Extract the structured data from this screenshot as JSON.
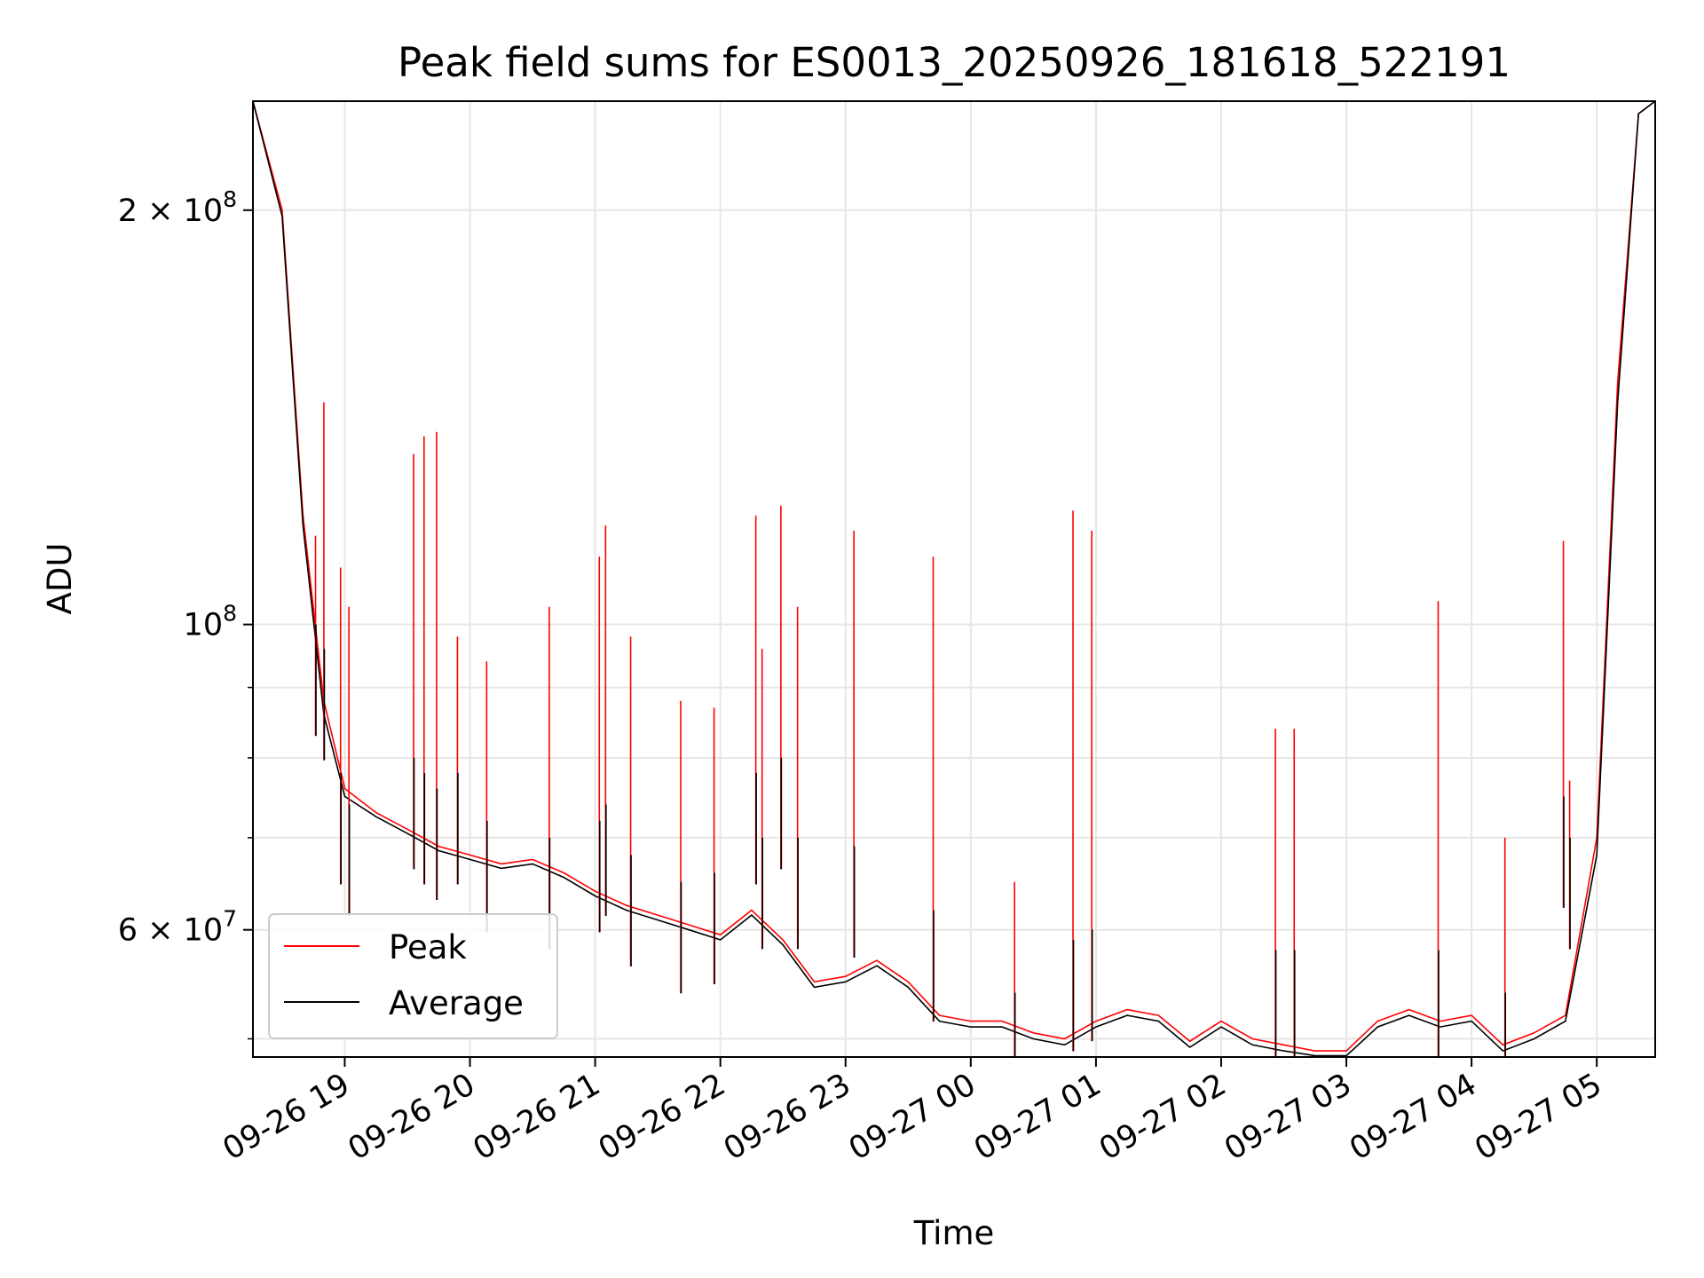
{
  "chart_data": {
    "type": "line",
    "title": "Peak field sums for ES0013_20250926_181618_522191",
    "xlabel": "Time",
    "ylabel": "ADU",
    "yscale": "log",
    "xlim": [
      "2025-09-26T18:16",
      "2025-09-27T05:28"
    ],
    "ylim": [
      48500000,
      240000000
    ],
    "grid": true,
    "legend_position": "lower-left",
    "x_ticks": [
      {
        "t": "2025-09-26T19:00",
        "label": "09-26 19"
      },
      {
        "t": "2025-09-26T20:00",
        "label": "09-26 20"
      },
      {
        "t": "2025-09-26T21:00",
        "label": "09-26 21"
      },
      {
        "t": "2025-09-26T22:00",
        "label": "09-26 22"
      },
      {
        "t": "2025-09-26T23:00",
        "label": "09-26 23"
      },
      {
        "t": "2025-09-27T00:00",
        "label": "09-27 00"
      },
      {
        "t": "2025-09-27T01:00",
        "label": "09-27 01"
      },
      {
        "t": "2025-09-27T02:00",
        "label": "09-27 02"
      },
      {
        "t": "2025-09-27T03:00",
        "label": "09-27 03"
      },
      {
        "t": "2025-09-27T04:00",
        "label": "09-27 04"
      },
      {
        "t": "2025-09-27T05:00",
        "label": "09-27 05"
      }
    ],
    "y_ticks": [
      {
        "v": 200000000,
        "label": "2 × 10",
        "exp": "8"
      },
      {
        "v": 100000000,
        "label": "10",
        "exp": "8"
      },
      {
        "v": 60000000,
        "label": "6 × 10",
        "exp": "7"
      }
    ],
    "y_minor_ticks": [
      50000000,
      70000000,
      80000000,
      90000000
    ],
    "series": [
      {
        "name": "Peak",
        "color": "#ff0000",
        "x": [
          "2025-09-26T18:16",
          "2025-09-26T18:30",
          "2025-09-26T18:40",
          "2025-09-26T18:50",
          "2025-09-26T19:00",
          "2025-09-26T19:15",
          "2025-09-26T19:30",
          "2025-09-26T19:45",
          "2025-09-26T20:00",
          "2025-09-26T20:15",
          "2025-09-26T20:30",
          "2025-09-26T20:45",
          "2025-09-26T21:00",
          "2025-09-26T21:15",
          "2025-09-26T21:30",
          "2025-09-26T21:45",
          "2025-09-26T22:00",
          "2025-09-26T22:15",
          "2025-09-26T22:30",
          "2025-09-26T22:45",
          "2025-09-26T23:00",
          "2025-09-26T23:15",
          "2025-09-26T23:30",
          "2025-09-26T23:45",
          "2025-09-27T00:00",
          "2025-09-27T00:15",
          "2025-09-27T00:30",
          "2025-09-27T00:45",
          "2025-09-27T01:00",
          "2025-09-27T01:15",
          "2025-09-27T01:30",
          "2025-09-27T01:45",
          "2025-09-27T02:00",
          "2025-09-27T02:15",
          "2025-09-27T02:30",
          "2025-09-27T02:45",
          "2025-09-27T03:00",
          "2025-09-27T03:15",
          "2025-09-27T03:30",
          "2025-09-27T03:45",
          "2025-09-27T04:00",
          "2025-09-27T04:15",
          "2025-09-27T04:30",
          "2025-09-27T04:45",
          "2025-09-27T05:00",
          "2025-09-27T05:10",
          "2025-09-27T05:20",
          "2025-09-27T05:28"
        ],
        "y": [
          240000000,
          200000000,
          120000000,
          88000000,
          76000000,
          73000000,
          71000000,
          69000000,
          68000000,
          67000000,
          67500000,
          66000000,
          64000000,
          62500000,
          61500000,
          60500000,
          59500000,
          62000000,
          59000000,
          55000000,
          55500000,
          57000000,
          55000000,
          52000000,
          51500000,
          51500000,
          50500000,
          50000000,
          51500000,
          52500000,
          52000000,
          49800000,
          51500000,
          50000000,
          49500000,
          49000000,
          49000000,
          51500000,
          52500000,
          51500000,
          52000000,
          49500000,
          50500000,
          52000000,
          70000000,
          150000000,
          235000000,
          240000000
        ]
      },
      {
        "name": "Average",
        "color": "#000000",
        "x": [
          "2025-09-26T18:16",
          "2025-09-26T18:30",
          "2025-09-26T18:40",
          "2025-09-26T18:50",
          "2025-09-26T19:00",
          "2025-09-26T19:15",
          "2025-09-26T19:30",
          "2025-09-26T19:45",
          "2025-09-26T20:00",
          "2025-09-26T20:15",
          "2025-09-26T20:30",
          "2025-09-26T20:45",
          "2025-09-26T21:00",
          "2025-09-26T21:15",
          "2025-09-26T21:30",
          "2025-09-26T21:45",
          "2025-09-26T22:00",
          "2025-09-26T22:15",
          "2025-09-26T22:30",
          "2025-09-26T22:45",
          "2025-09-26T23:00",
          "2025-09-26T23:15",
          "2025-09-26T23:30",
          "2025-09-26T23:45",
          "2025-09-27T00:00",
          "2025-09-27T00:15",
          "2025-09-27T00:30",
          "2025-09-27T00:45",
          "2025-09-27T01:00",
          "2025-09-27T01:15",
          "2025-09-27T01:30",
          "2025-09-27T01:45",
          "2025-09-27T02:00",
          "2025-09-27T02:15",
          "2025-09-27T02:30",
          "2025-09-27T02:45",
          "2025-09-27T03:00",
          "2025-09-27T03:15",
          "2025-09-27T03:30",
          "2025-09-27T03:45",
          "2025-09-27T04:00",
          "2025-09-27T04:15",
          "2025-09-27T04:30",
          "2025-09-27T04:45",
          "2025-09-27T05:00",
          "2025-09-27T05:10",
          "2025-09-27T05:20",
          "2025-09-27T05:28"
        ],
        "y": [
          240000000,
          198000000,
          118000000,
          86000000,
          75000000,
          72500000,
          70500000,
          68500000,
          67500000,
          66500000,
          67000000,
          65500000,
          63500000,
          62000000,
          61000000,
          60000000,
          59000000,
          61500000,
          58500000,
          54500000,
          55000000,
          56500000,
          54500000,
          51500000,
          51000000,
          51000000,
          50000000,
          49500000,
          51000000,
          52000000,
          51500000,
          49300000,
          51000000,
          49500000,
          49000000,
          48600000,
          48600000,
          51000000,
          52000000,
          51000000,
          51500000,
          49000000,
          50000000,
          51500000,
          68000000,
          145000000,
          235000000,
          240000000
        ]
      }
    ],
    "spikes": [
      {
        "t": "2025-09-26T18:46",
        "peak": 116000000,
        "avg": 100000000
      },
      {
        "t": "2025-09-26T18:50",
        "peak": 145000000,
        "avg": 96000000
      },
      {
        "t": "2025-09-26T18:58",
        "peak": 110000000,
        "avg": 78000000
      },
      {
        "t": "2025-09-26T19:02",
        "peak": 103000000,
        "avg": 74000000
      },
      {
        "t": "2025-09-26T19:33",
        "peak": 133000000,
        "avg": 80000000
      },
      {
        "t": "2025-09-26T19:38",
        "peak": 137000000,
        "avg": 78000000
      },
      {
        "t": "2025-09-26T19:44",
        "peak": 138000000,
        "avg": 76000000
      },
      {
        "t": "2025-09-26T19:54",
        "peak": 98000000,
        "avg": 78000000
      },
      {
        "t": "2025-09-26T20:08",
        "peak": 94000000,
        "avg": 72000000
      },
      {
        "t": "2025-09-26T20:38",
        "peak": 103000000,
        "avg": 70000000
      },
      {
        "t": "2025-09-26T21:02",
        "peak": 112000000,
        "avg": 72000000
      },
      {
        "t": "2025-09-26T21:05",
        "peak": 118000000,
        "avg": 74000000
      },
      {
        "t": "2025-09-26T21:17",
        "peak": 98000000,
        "avg": 68000000
      },
      {
        "t": "2025-09-26T21:41",
        "peak": 88000000,
        "avg": 65000000
      },
      {
        "t": "2025-09-26T21:57",
        "peak": 87000000,
        "avg": 66000000
      },
      {
        "t": "2025-09-26T22:17",
        "peak": 120000000,
        "avg": 78000000
      },
      {
        "t": "2025-09-26T22:20",
        "peak": 96000000,
        "avg": 70000000
      },
      {
        "t": "2025-09-26T22:29",
        "peak": 122000000,
        "avg": 80000000
      },
      {
        "t": "2025-09-26T22:37",
        "peak": 103000000,
        "avg": 70000000
      },
      {
        "t": "2025-09-26T23:04",
        "peak": 117000000,
        "avg": 69000000
      },
      {
        "t": "2025-09-26T23:42",
        "peak": 112000000,
        "avg": 62000000
      },
      {
        "t": "2025-09-27T00:21",
        "peak": 65000000,
        "avg": 54000000
      },
      {
        "t": "2025-09-27T00:49",
        "peak": 121000000,
        "avg": 59000000
      },
      {
        "t": "2025-09-27T00:58",
        "peak": 117000000,
        "avg": 60000000
      },
      {
        "t": "2025-09-27T02:26",
        "peak": 84000000,
        "avg": 58000000
      },
      {
        "t": "2025-09-27T02:35",
        "peak": 84000000,
        "avg": 58000000
      },
      {
        "t": "2025-09-27T03:44",
        "peak": 104000000,
        "avg": 58000000
      },
      {
        "t": "2025-09-27T04:16",
        "peak": 70000000,
        "avg": 54000000
      },
      {
        "t": "2025-09-27T04:44",
        "peak": 115000000,
        "avg": 75000000
      },
      {
        "t": "2025-09-27T04:47",
        "peak": 77000000,
        "avg": 70000000
      }
    ]
  }
}
